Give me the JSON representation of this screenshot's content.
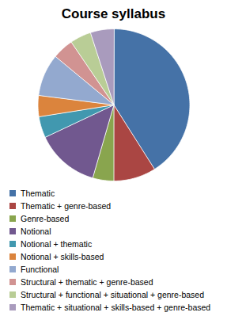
{
  "chart_data": {
    "type": "pie",
    "title": "Course syllabus",
    "categories": [
      "Thematic",
      "Thematic + genre-based",
      "Genre-based",
      "Notional",
      "Notional + thematic",
      "Notional + skills-based",
      "Functional",
      "Structural + thematic + genre-based",
      "Structural + functional + situational + genre-based",
      "Thematic + situational + skills-based + genre-based"
    ],
    "values": [
      41,
      9,
      4.5,
      13.5,
      4.5,
      4.5,
      9,
      4.5,
      4.5,
      5
    ],
    "colors": [
      "#4572A7",
      "#AA4643",
      "#89A54E",
      "#71588F",
      "#4198AF",
      "#DB843D",
      "#93A9CF",
      "#D19392",
      "#B9CD96",
      "#A99BBD"
    ],
    "legend": "bottom"
  }
}
